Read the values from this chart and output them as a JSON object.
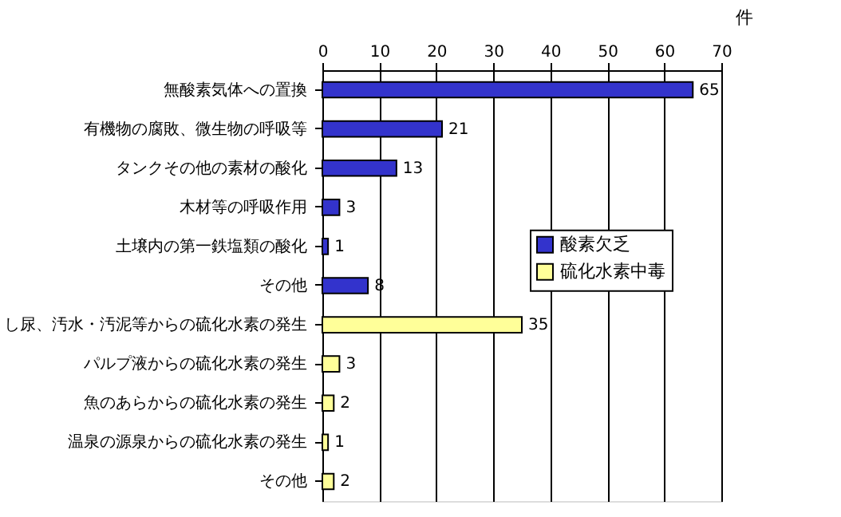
{
  "chart_data": {
    "type": "bar",
    "orientation": "horizontal",
    "xlabel": "件",
    "categories": [
      "無酸素気体への置換",
      "有機物の腐敗、微生物の呼吸等",
      "タンクその他の素材の酸化",
      "木材等の呼吸作用",
      "土壌内の第一鉄塩類の酸化",
      "その他",
      "し尿、汚水・汚泥等からの硫化水素の発生",
      "パルプ液からの硫化水素の発生",
      "魚のあらからの硫化水素の発生",
      "温泉の源泉からの硫化水素の発生",
      "その他"
    ],
    "series": [
      {
        "name": "酸素欠乏",
        "color": "#3333cc",
        "values": [
          65,
          21,
          13,
          3,
          1,
          8,
          null,
          null,
          null,
          null,
          null
        ]
      },
      {
        "name": "硫化水素中毒",
        "color": "#ffff99",
        "values": [
          null,
          null,
          null,
          null,
          null,
          null,
          35,
          3,
          2,
          1,
          2
        ]
      }
    ],
    "xlim": [
      0,
      70
    ],
    "xticks": [
      0,
      10,
      20,
      30,
      40,
      50,
      60,
      70
    ],
    "grid": "x",
    "legend": "right",
    "data_labels": true
  }
}
